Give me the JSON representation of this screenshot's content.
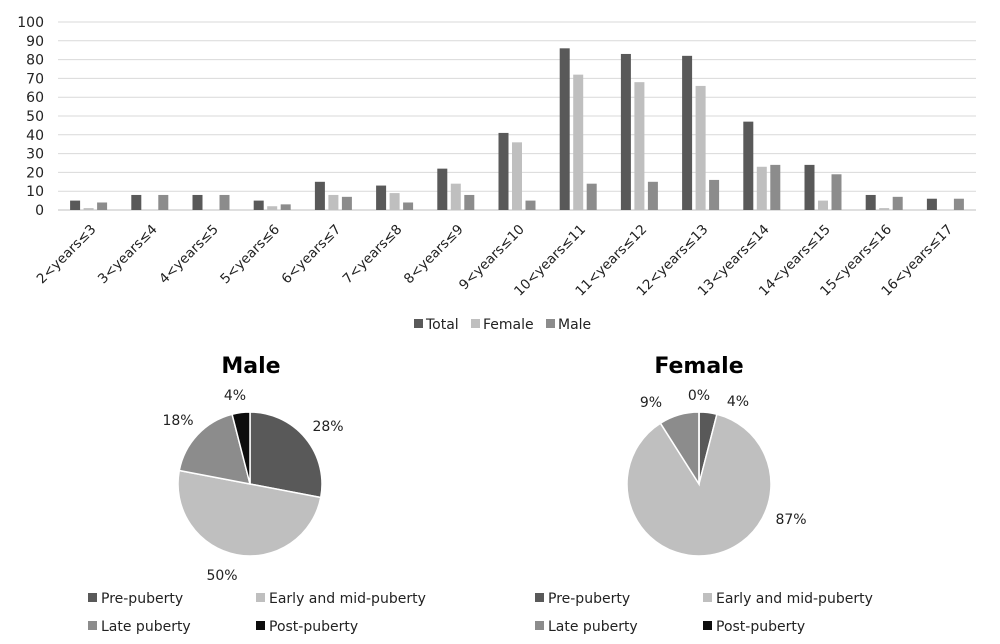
{
  "chart_data": [
    {
      "type": "bar",
      "title": "",
      "xlabel": "",
      "ylabel": "",
      "ylim": [
        0,
        100
      ],
      "yticks": [
        0,
        10,
        20,
        30,
        40,
        50,
        60,
        70,
        80,
        90,
        100
      ],
      "grid": true,
      "legend_position": "bottom",
      "categories": [
        "2<years≤3",
        "3<years≤4",
        "4<years≤5",
        "5<years≤6",
        "6<years≤7",
        "7<years≤8",
        "8<years≤9",
        "9<years≤10",
        "10<years≤11",
        "11<years≤12",
        "12<years≤13",
        "13<years≤14",
        "14<years≤15",
        "15<years≤16",
        "16<years≤17"
      ],
      "series": [
        {
          "name": "Total",
          "color": "#595959",
          "values": [
            5,
            8,
            8,
            5,
            15,
            13,
            22,
            41,
            86,
            83,
            82,
            47,
            24,
            8,
            6
          ]
        },
        {
          "name": "Female",
          "color": "#bfbfbf",
          "values": [
            1,
            0,
            0,
            2,
            8,
            9,
            14,
            36,
            72,
            68,
            66,
            23,
            5,
            1,
            0
          ]
        },
        {
          "name": "Male",
          "color": "#8c8c8c",
          "values": [
            4,
            8,
            8,
            3,
            7,
            4,
            8,
            5,
            14,
            15,
            16,
            24,
            19,
            7,
            6
          ]
        }
      ]
    },
    {
      "type": "pie",
      "title": "Male",
      "legend_position": "bottom",
      "categories": [
        "Pre-puberty",
        "Early and mid-puberty",
        "Late puberty",
        "Post-puberty"
      ],
      "values": [
        28,
        50,
        18,
        4
      ],
      "labels": [
        "28%",
        "50%",
        "18%",
        "4%"
      ],
      "colors": [
        "#595959",
        "#bfbfbf",
        "#8c8c8c",
        "#0d0d0d"
      ]
    },
    {
      "type": "pie",
      "title": "Female",
      "legend_position": "bottom",
      "categories": [
        "Pre-puberty",
        "Early and mid-puberty",
        "Late puberty",
        "Post-puberty"
      ],
      "values": [
        4,
        87,
        9,
        0
      ],
      "labels": [
        "4%",
        "87%",
        "9%",
        "0%"
      ],
      "colors": [
        "#595959",
        "#bfbfbf",
        "#8c8c8c",
        "#0d0d0d"
      ]
    }
  ]
}
